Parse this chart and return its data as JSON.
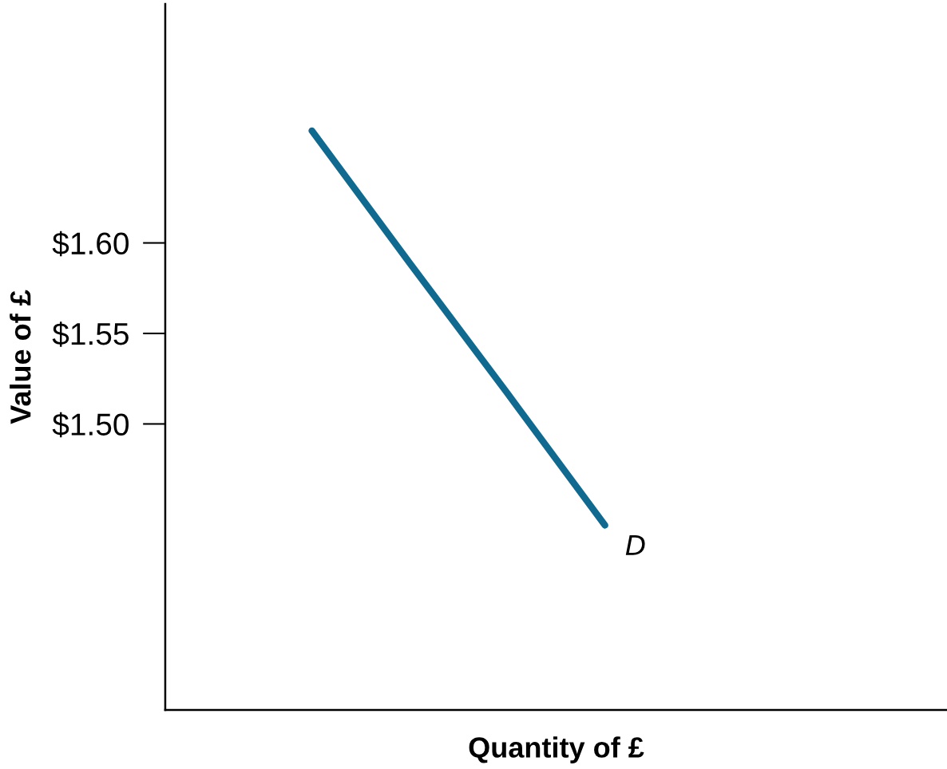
{
  "chart_data": {
    "type": "line",
    "xlabel": "Quantity of £",
    "ylabel": "Value of £",
    "categories": [
      null,
      null,
      null,
      null,
      null,
      null,
      null,
      null
    ],
    "series": [
      {
        "color": "#10698f",
        "values": [
          null,
          1.662,
          1.589,
          1.517,
          1.444,
          null,
          null,
          null
        ]
      }
    ],
    "annotations": [
      "D"
    ],
    "ylim": [
      1.342,
      1.732
    ],
    "yticks": [
      {
        "value": 1.5,
        "label": "$1.50"
      },
      {
        "value": 1.55,
        "label": "$1.55"
      },
      {
        "value": 1.6,
        "label": "$1.60"
      }
    ],
    "tick_labels": "y",
    "grid": false,
    "legend": false
  }
}
